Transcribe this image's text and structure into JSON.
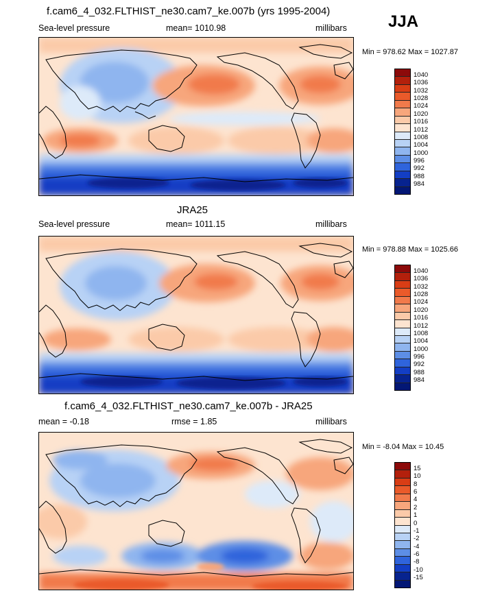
{
  "season": "JJA",
  "panels": [
    {
      "title": "f.cam6_4_032.FLTHIST_ne30.cam7_ke.007b (yrs 1995-2004)",
      "left_label": "Sea-level pressure",
      "center_label": "mean= 1010.98",
      "right_label": "millibars",
      "minmax": "Min = 978.62 Max = 1027.87"
    },
    {
      "title": "JRA25",
      "left_label": "Sea-level pressure",
      "center_label": "mean= 1011.15",
      "right_label": "millibars",
      "minmax": "Min = 978.88 Max = 1025.66"
    },
    {
      "title": "f.cam6_4_032.FLTHIST_ne30.cam7_ke.007b - JRA25",
      "left_label": "mean =  -0.18",
      "center_label": "rmse =   1.85",
      "right_label": "millibars",
      "minmax": "Min =  -8.04 Max =  10.45"
    }
  ],
  "colorbars": {
    "absolute": {
      "labels": [
        "1040",
        "1036",
        "1032",
        "1028",
        "1024",
        "1020",
        "1016",
        "1012",
        "1008",
        "1004",
        "1000",
        "996",
        "992",
        "988",
        "984"
      ],
      "colors": [
        "#8c0a0a",
        "#b3200c",
        "#d93d15",
        "#ea5a2a",
        "#f17a4b",
        "#f7a67c",
        "#fbcaa9",
        "#fde4d0",
        "#ddeaf9",
        "#b8d2f5",
        "#8fb5ef",
        "#5d8ee6",
        "#2f64dc",
        "#133ec4",
        "#07238f",
        "#031775"
      ]
    },
    "difference": {
      "labels": [
        "15",
        "10",
        "8",
        "6",
        "4",
        "2",
        "1",
        "0",
        "-1",
        "-2",
        "-4",
        "-6",
        "-8",
        "-10",
        "-15"
      ],
      "colors": [
        "#8c0a0a",
        "#b3200c",
        "#d93d15",
        "#ea5a2a",
        "#f17a4b",
        "#f7a67c",
        "#fbcaa9",
        "#fde4d0",
        "#ddeaf9",
        "#b8d2f5",
        "#8fb5ef",
        "#5d8ee6",
        "#2f64dc",
        "#133ec4",
        "#07238f",
        "#031775"
      ]
    }
  }
}
